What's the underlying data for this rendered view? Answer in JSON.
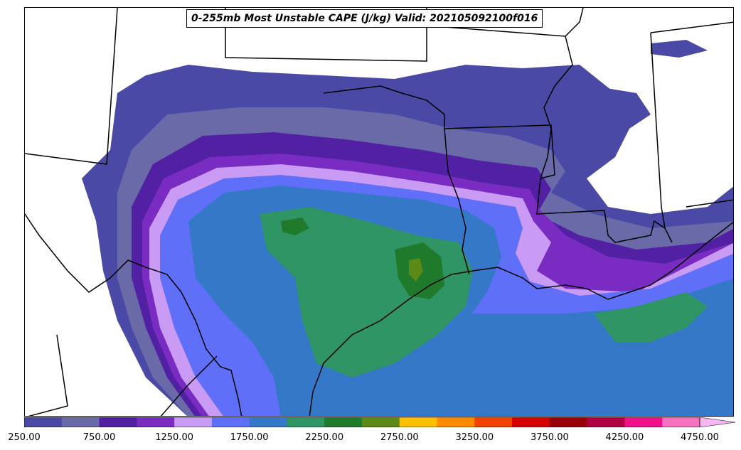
{
  "title": "0-255mb Most Unstable CAPE (J/kg) Valid: 202105092100f016",
  "colorbar": {
    "colors": [
      "#4a4aa6",
      "#6a6aa8",
      "#5220a2",
      "#7a2cc2",
      "#c99bf5",
      "#5f6ff8",
      "#3578c8",
      "#2f9565",
      "#1f7a2c",
      "#5c8a16",
      "#ffc000",
      "#ff8a00",
      "#f24400",
      "#d60000",
      "#980008",
      "#b00040",
      "#f0108a",
      "#f870c0"
    ],
    "extend_color": "#f6b6f2",
    "tick_labels": [
      "250.00",
      "750.00",
      "1250.00",
      "1750.00",
      "2250.00",
      "2750.00",
      "3250.00",
      "3750.00",
      "4250.00",
      "4750.00"
    ],
    "min": 250,
    "max": 4750,
    "step": 250
  },
  "map_fill_colors": {
    "c250": "#4a4aa6",
    "c500": "#6a6aa8",
    "c750": "#5220a2",
    "c1000": "#7a2cc2",
    "c1250": "#c99bf5",
    "c1500": "#5f6ff8",
    "c1750": "#3578c8",
    "c2000": "#2f9565",
    "c2250": "#1f7a2c",
    "c2500": "#5c8a16"
  }
}
